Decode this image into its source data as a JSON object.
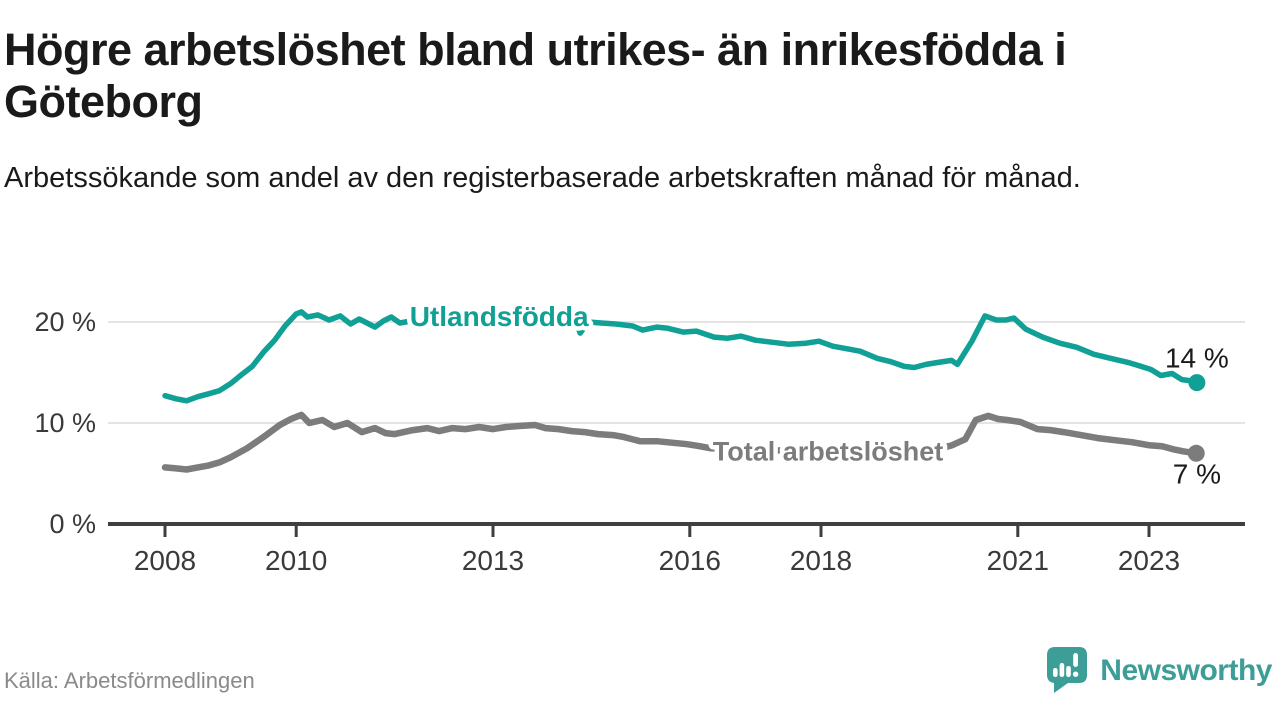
{
  "title": "Högre arbetslöshet bland utrikes- än inrikesfödda i Göteborg",
  "subtitle": "Arbetssökande som andel av den registerbaserade arbetskraften månad för månad.",
  "source": "Källa: Arbetsförmedlingen",
  "branding": {
    "name": "Newsworthy",
    "icon": "speech-bubble-bar-chart-icon",
    "color": "#3d9e98"
  },
  "chart_data": {
    "type": "line",
    "title": "Högre arbetslöshet bland utrikes- än inrikesfödda i Göteborg",
    "xlabel": "",
    "ylabel": "",
    "unit": "%",
    "xlim": [
      2007.7,
      2024.5
    ],
    "ylim": [
      0,
      23
    ],
    "grid": "horizontal-light",
    "x_ticks": [
      2008,
      2010,
      2013,
      2016,
      2018,
      2021,
      2023
    ],
    "y_ticks": [
      {
        "value": 0,
        "label": "0 %"
      },
      {
        "value": 10,
        "label": "10 %"
      },
      {
        "value": 20,
        "label": "20 %"
      }
    ],
    "series": [
      {
        "name": "Utlandsfödda",
        "color": "#10a095",
        "width": 5.5,
        "end_value": 14,
        "end_label": "14 %",
        "points": [
          [
            2008.0,
            12.7
          ],
          [
            2008.17,
            12.4
          ],
          [
            2008.33,
            12.2
          ],
          [
            2008.5,
            12.6
          ],
          [
            2008.67,
            12.9
          ],
          [
            2008.83,
            13.2
          ],
          [
            2009.0,
            13.9
          ],
          [
            2009.17,
            14.8
          ],
          [
            2009.33,
            15.6
          ],
          [
            2009.5,
            17.0
          ],
          [
            2009.67,
            18.2
          ],
          [
            2009.83,
            19.6
          ],
          [
            2010.0,
            20.8
          ],
          [
            2010.08,
            21.0
          ],
          [
            2010.17,
            20.5
          ],
          [
            2010.33,
            20.7
          ],
          [
            2010.5,
            20.2
          ],
          [
            2010.67,
            20.6
          ],
          [
            2010.83,
            19.8
          ],
          [
            2010.96,
            20.3
          ],
          [
            2011.08,
            19.9
          ],
          [
            2011.2,
            19.5
          ],
          [
            2011.33,
            20.1
          ],
          [
            2011.45,
            20.5
          ],
          [
            2011.58,
            19.9
          ],
          [
            2011.75,
            20.1
          ],
          [
            2011.9,
            20.3
          ],
          [
            2012.0,
            20.1
          ],
          [
            2012.25,
            20.4
          ],
          [
            2012.5,
            20.3
          ],
          [
            2012.75,
            20.5
          ],
          [
            2013.0,
            20.5
          ],
          [
            2013.25,
            20.3
          ],
          [
            2013.5,
            20.5
          ],
          [
            2013.75,
            20.2
          ],
          [
            2014.0,
            20.3
          ],
          [
            2014.25,
            20.2
          ],
          [
            2014.33,
            18.9
          ],
          [
            2014.45,
            20.0
          ],
          [
            2014.65,
            19.9
          ],
          [
            2014.87,
            19.8
          ],
          [
            2015.13,
            19.6
          ],
          [
            2015.28,
            19.2
          ],
          [
            2015.5,
            19.5
          ],
          [
            2015.65,
            19.4
          ],
          [
            2015.9,
            19.0
          ],
          [
            2016.1,
            19.1
          ],
          [
            2016.37,
            18.5
          ],
          [
            2016.58,
            18.4
          ],
          [
            2016.78,
            18.6
          ],
          [
            2017.0,
            18.2
          ],
          [
            2017.25,
            18.0
          ],
          [
            2017.5,
            17.8
          ],
          [
            2017.77,
            17.9
          ],
          [
            2017.97,
            18.1
          ],
          [
            2018.18,
            17.6
          ],
          [
            2018.44,
            17.3
          ],
          [
            2018.6,
            17.1
          ],
          [
            2018.86,
            16.4
          ],
          [
            2019.05,
            16.1
          ],
          [
            2019.27,
            15.6
          ],
          [
            2019.42,
            15.5
          ],
          [
            2019.6,
            15.8
          ],
          [
            2019.79,
            16.0
          ],
          [
            2019.99,
            16.2
          ],
          [
            2020.08,
            15.8
          ],
          [
            2020.3,
            18.1
          ],
          [
            2020.5,
            20.6
          ],
          [
            2020.67,
            20.2
          ],
          [
            2020.82,
            20.2
          ],
          [
            2020.94,
            20.4
          ],
          [
            2021.12,
            19.3
          ],
          [
            2021.38,
            18.5
          ],
          [
            2021.64,
            17.9
          ],
          [
            2021.9,
            17.5
          ],
          [
            2022.16,
            16.8
          ],
          [
            2022.42,
            16.4
          ],
          [
            2022.68,
            16.0
          ],
          [
            2022.88,
            15.6
          ],
          [
            2023.03,
            15.3
          ],
          [
            2023.18,
            14.7
          ],
          [
            2023.35,
            14.9
          ],
          [
            2023.5,
            14.3
          ],
          [
            2023.62,
            14.2
          ],
          [
            2023.73,
            14.0
          ]
        ]
      },
      {
        "name": "Total arbetslöshet",
        "color": "#7c7c7c",
        "width": 6.5,
        "end_value": 7,
        "end_label": "7 %",
        "points": [
          [
            2008.0,
            5.6
          ],
          [
            2008.17,
            5.5
          ],
          [
            2008.33,
            5.4
          ],
          [
            2008.5,
            5.6
          ],
          [
            2008.67,
            5.8
          ],
          [
            2008.83,
            6.1
          ],
          [
            2009.0,
            6.6
          ],
          [
            2009.25,
            7.5
          ],
          [
            2009.5,
            8.6
          ],
          [
            2009.75,
            9.8
          ],
          [
            2009.92,
            10.4
          ],
          [
            2010.08,
            10.8
          ],
          [
            2010.2,
            10.0
          ],
          [
            2010.4,
            10.3
          ],
          [
            2010.58,
            9.6
          ],
          [
            2010.78,
            10.0
          ],
          [
            2011.0,
            9.1
          ],
          [
            2011.2,
            9.5
          ],
          [
            2011.36,
            9.0
          ],
          [
            2011.5,
            8.9
          ],
          [
            2011.78,
            9.3
          ],
          [
            2012.0,
            9.5
          ],
          [
            2012.18,
            9.2
          ],
          [
            2012.38,
            9.5
          ],
          [
            2012.58,
            9.4
          ],
          [
            2012.79,
            9.6
          ],
          [
            2013.0,
            9.4
          ],
          [
            2013.2,
            9.6
          ],
          [
            2013.4,
            9.7
          ],
          [
            2013.64,
            9.8
          ],
          [
            2013.8,
            9.5
          ],
          [
            2014.0,
            9.4
          ],
          [
            2014.2,
            9.2
          ],
          [
            2014.4,
            9.1
          ],
          [
            2014.6,
            8.9
          ],
          [
            2014.83,
            8.8
          ],
          [
            2015.0,
            8.6
          ],
          [
            2015.24,
            8.2
          ],
          [
            2015.5,
            8.2
          ],
          [
            2015.65,
            8.1
          ],
          [
            2015.96,
            7.9
          ],
          [
            2016.15,
            7.7
          ],
          [
            2016.32,
            7.5
          ],
          [
            2016.75,
            7.4
          ],
          [
            2017.25,
            7.3
          ],
          [
            2017.75,
            7.2
          ],
          [
            2018.25,
            7.1
          ],
          [
            2018.75,
            7.0
          ],
          [
            2019.25,
            7.1
          ],
          [
            2019.6,
            7.3
          ],
          [
            2019.83,
            7.5
          ],
          [
            2020.0,
            7.8
          ],
          [
            2020.2,
            8.4
          ],
          [
            2020.36,
            10.3
          ],
          [
            2020.55,
            10.7
          ],
          [
            2020.7,
            10.4
          ],
          [
            2020.84,
            10.3
          ],
          [
            2021.04,
            10.1
          ],
          [
            2021.3,
            9.4
          ],
          [
            2021.5,
            9.3
          ],
          [
            2021.7,
            9.1
          ],
          [
            2021.96,
            8.8
          ],
          [
            2022.22,
            8.5
          ],
          [
            2022.48,
            8.3
          ],
          [
            2022.74,
            8.1
          ],
          [
            2023.0,
            7.8
          ],
          [
            2023.2,
            7.7
          ],
          [
            2023.37,
            7.4
          ],
          [
            2023.52,
            7.2
          ],
          [
            2023.72,
            7.0
          ]
        ]
      }
    ],
    "annotations": [
      {
        "text": "Utlandsfödda",
        "x": 2011.73,
        "y": 20.5,
        "anchor": "start",
        "color": "#10a095",
        "size": 28,
        "bold": true,
        "halo": true
      },
      {
        "text": "Total arbetslöshet",
        "x": 2016.35,
        "y": 7.2,
        "anchor": "start",
        "color": "#7c7c7c",
        "size": 27,
        "bold": true,
        "halo": true
      },
      {
        "text": "14 %",
        "x": 2023.73,
        "y": 16.4,
        "anchor": "middle",
        "color": "#1a1a1a",
        "size": 28,
        "bold": false,
        "halo": false
      },
      {
        "text": "7 %",
        "x": 2023.73,
        "y": 4.9,
        "anchor": "middle",
        "color": "#1a1a1a",
        "size": 28,
        "bold": false,
        "halo": false
      }
    ],
    "legend": "inline-labels"
  }
}
